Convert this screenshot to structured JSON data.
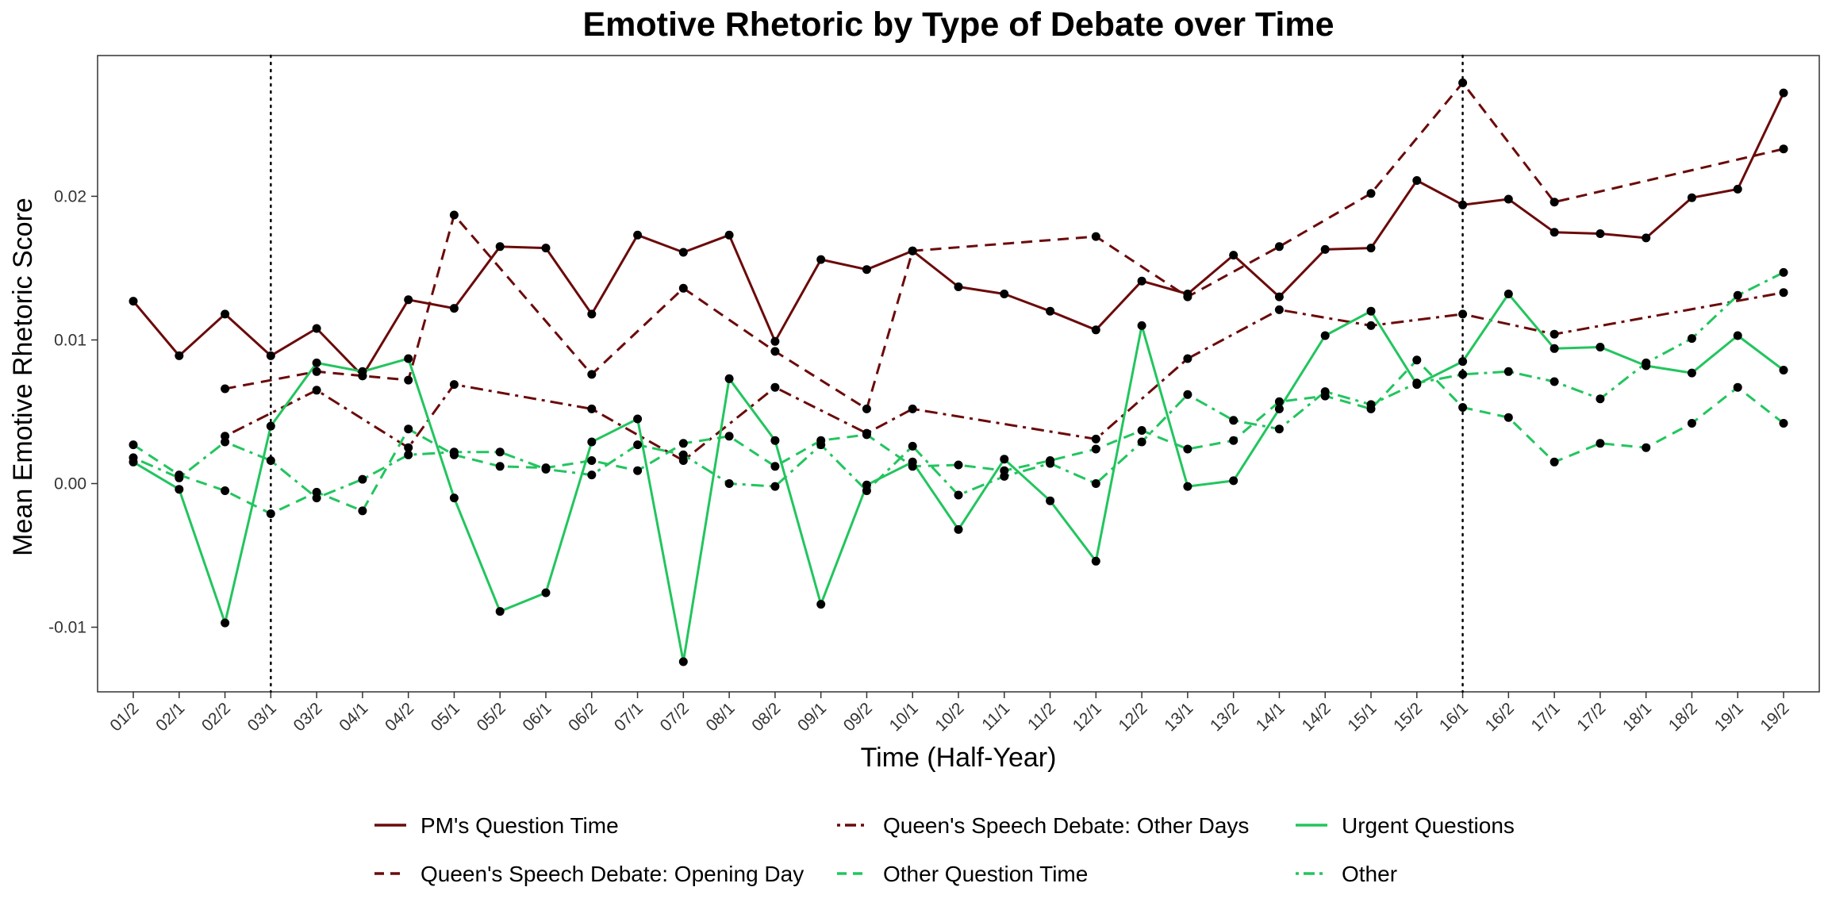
{
  "chart_data": {
    "type": "line",
    "title": "Emotive Rhetoric by Type of Debate over Time",
    "xlabel": "Time (Half-Year)",
    "ylabel": "Mean Emotive Rhetoric Score",
    "ylim": [
      -0.0145,
      0.0298
    ],
    "y_ticks": [
      -0.01,
      0.0,
      0.01,
      0.02
    ],
    "y_tick_labels": [
      "-0.01",
      "0.00",
      "0.01",
      "0.02"
    ],
    "grid": false,
    "legend_position": "bottom",
    "categories": [
      "01/2",
      "02/1",
      "02/2",
      "03/1",
      "03/2",
      "04/1",
      "04/2",
      "05/1",
      "05/2",
      "06/1",
      "06/2",
      "07/1",
      "07/2",
      "08/1",
      "08/2",
      "09/1",
      "09/2",
      "10/1",
      "10/2",
      "11/1",
      "11/2",
      "12/1",
      "12/2",
      "13/1",
      "13/2",
      "14/1",
      "14/2",
      "15/1",
      "15/2",
      "16/1",
      "16/2",
      "17/1",
      "17/2",
      "18/1",
      "18/2",
      "19/1",
      "19/2"
    ],
    "reference_lines": [
      "03/1",
      "16/1"
    ],
    "series": [
      {
        "name": "PM's Question Time",
        "color": "#6B0A0A",
        "dash": "solid",
        "values": [
          0.0127,
          0.0089,
          0.0118,
          0.0089,
          0.0108,
          0.0075,
          0.0128,
          0.0122,
          0.0165,
          0.0164,
          0.0118,
          0.0173,
          0.0161,
          0.0173,
          0.0099,
          0.0156,
          0.0149,
          0.0162,
          0.0137,
          0.0132,
          0.012,
          0.0107,
          0.0141,
          0.0132,
          0.0159,
          0.013,
          0.0163,
          0.0164,
          0.0211,
          0.0194,
          0.0198,
          0.0175,
          0.0174,
          0.0171,
          0.0199,
          0.0205,
          0.0272
        ]
      },
      {
        "name": "Queen's Speech Debate: Opening Day",
        "color": "#6B0A0A",
        "dash": "dashed",
        "values": [
          null,
          null,
          0.0066,
          null,
          0.0078,
          0.0075,
          0.0072,
          0.0187,
          null,
          null,
          0.0076,
          null,
          0.0136,
          null,
          0.0092,
          null,
          0.0052,
          0.0162,
          null,
          null,
          null,
          0.0172,
          null,
          0.013,
          null,
          0.0165,
          null,
          0.0202,
          null,
          0.0279,
          null,
          0.0196,
          null,
          null,
          null,
          null,
          0.0233
        ]
      },
      {
        "name": "Queen's Speech Debate: Other Days",
        "color": "#6B0A0A",
        "dash": "dotdash",
        "values": [
          null,
          null,
          0.0033,
          null,
          0.0065,
          null,
          0.0025,
          0.0069,
          null,
          null,
          0.0052,
          null,
          0.0016,
          null,
          0.0067,
          null,
          0.0035,
          0.0052,
          null,
          null,
          null,
          0.0031,
          null,
          0.0087,
          null,
          0.0121,
          null,
          0.011,
          null,
          0.0118,
          null,
          0.0104,
          null,
          null,
          null,
          null,
          0.0133
        ]
      },
      {
        "name": "Other Question Time",
        "color": "#22C55E",
        "dash": "dashed",
        "values": [
          0.0027,
          0.0006,
          -0.0005,
          -0.0021,
          -0.0006,
          -0.0019,
          0.0038,
          0.002,
          0.0012,
          0.0011,
          0.0016,
          0.0009,
          0.0028,
          0.0033,
          0.0012,
          0.003,
          0.0034,
          0.0012,
          0.0013,
          0.0009,
          0.0016,
          0.0024,
          0.0037,
          0.0024,
          0.003,
          0.0057,
          0.0061,
          0.0052,
          0.0086,
          0.0053,
          0.0046,
          0.0015,
          0.0028,
          0.0025,
          0.0042,
          0.0067,
          0.0042
        ]
      },
      {
        "name": "Urgent Questions",
        "color": "#22C55E",
        "dash": "solid",
        "values": [
          0.0015,
          -0.0004,
          -0.0097,
          0.004,
          0.0084,
          0.0078,
          0.0087,
          -0.001,
          -0.0089,
          -0.0076,
          0.0029,
          0.0045,
          -0.0124,
          0.0073,
          0.003,
          -0.0084,
          -0.0001,
          0.0015,
          -0.0032,
          0.0017,
          -0.0012,
          -0.0054,
          0.011,
          -0.0002,
          0.0002,
          0.0052,
          0.0103,
          0.012,
          0.0069,
          0.0085,
          0.0132,
          0.0094,
          0.0095,
          0.0082,
          0.0077,
          0.0103,
          0.0079
        ]
      },
      {
        "name": "Other",
        "color": "#22C55E",
        "dash": "dotdash",
        "values": [
          0.0018,
          0.0004,
          0.0029,
          0.0016,
          -0.001,
          0.0003,
          0.002,
          0.0022,
          0.0022,
          0.001,
          0.0006,
          0.0027,
          0.002,
          0.0,
          -0.0002,
          0.0027,
          -0.0005,
          0.0026,
          -0.0008,
          0.0005,
          0.0014,
          0.0,
          0.0029,
          0.0062,
          0.0044,
          0.0038,
          0.0064,
          0.0055,
          0.007,
          0.0076,
          0.0078,
          0.0071,
          0.0059,
          0.0084,
          0.0101,
          0.0131,
          0.0147
        ]
      }
    ]
  }
}
